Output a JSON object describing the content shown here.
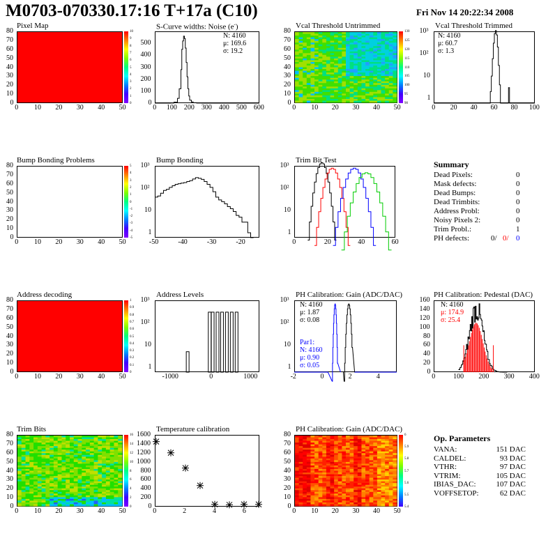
{
  "header": {
    "title": "M0703-070330.17:16 T+17a (C10)",
    "date": "Fri Nov 14 20:22:34 2008"
  },
  "panels": {
    "p11": {
      "title": "Pixel Map",
      "yt": [
        "0",
        "10",
        "20",
        "30",
        "40",
        "50",
        "60",
        "70",
        "80"
      ],
      "xt": [
        "0",
        "10",
        "20",
        "30",
        "40",
        "50"
      ],
      "cb": [
        "10",
        "9",
        "8",
        "7",
        "6",
        "5",
        "4",
        "3",
        "2",
        "1",
        "0"
      ]
    },
    "p12": {
      "title": "S-Curve widths: Noise (e<sup>-</sup>)",
      "title_text": "S-Curve widths: Noise (e )",
      "yt": [
        "0",
        "100",
        "200",
        "300",
        "400",
        "500"
      ],
      "xt": [
        "0",
        "100",
        "200",
        "300",
        "400",
        "500",
        "600"
      ],
      "stats": [
        "N: 4160",
        "μ: 169.6",
        "σ: 19.2"
      ]
    },
    "p13": {
      "title": "Vcal Threshold Untrimmed",
      "yt": [
        "0",
        "10",
        "20",
        "30",
        "40",
        "50",
        "60",
        "70",
        "80"
      ],
      "xt": [
        "0",
        "10",
        "20",
        "30",
        "40",
        "50"
      ],
      "cb": [
        "130",
        "125",
        "120",
        "115",
        "110",
        "105",
        "100",
        "95",
        "90"
      ]
    },
    "p14": {
      "title": "Vcal Threshold Trimmed",
      "yt": [
        "1",
        "10",
        "10²",
        "10³"
      ],
      "xt": [
        "0",
        "20",
        "40",
        "60",
        "80",
        "100"
      ],
      "stats": [
        "N: 4160",
        "μ: 60.7",
        "σ:  1.3"
      ]
    },
    "p21": {
      "title": "Bump Bonding Problems",
      "yt": [
        "0",
        "10",
        "20",
        "30",
        "40",
        "50",
        "60",
        "70",
        "80"
      ],
      "xt": [
        "0",
        "10",
        "20",
        "30",
        "40",
        "50"
      ],
      "cb": [
        "5",
        "4",
        "3",
        "2",
        "1",
        "0",
        "-1",
        "-2",
        "-3",
        "-4",
        "-5"
      ]
    },
    "p22": {
      "title": "Bump Bonding",
      "yt": [
        "1",
        "10",
        "10²",
        "10³"
      ],
      "xt": [
        "-50",
        "-40",
        "-30",
        "-20"
      ]
    },
    "p23": {
      "title": "Trim Bit Test",
      "yt": [
        "1",
        "10",
        "10²",
        "10³"
      ],
      "xt": [
        "0",
        "20",
        "40",
        "60"
      ]
    },
    "p31": {
      "title": "Address decoding",
      "yt": [
        "0",
        "10",
        "20",
        "30",
        "40",
        "50",
        "60",
        "70",
        "80"
      ],
      "xt": [
        "0",
        "10",
        "20",
        "30",
        "40",
        "50"
      ],
      "cb": [
        "1",
        "0.9",
        "0.8",
        "0.7",
        "0.6",
        "0.5",
        "0.4",
        "0.3",
        "0.2",
        "0.1",
        "0"
      ]
    },
    "p32": {
      "title": "Address Levels",
      "yt": [
        "1",
        "10",
        "10²",
        "10³"
      ],
      "xt": [
        "-1000",
        "0",
        "1000"
      ]
    },
    "p33": {
      "title": "PH Calibration: Gain (ADC/DAC)",
      "yt": [
        "1",
        "10",
        "10²",
        "10³"
      ],
      "xt": [
        "-2",
        "0",
        "2",
        "4"
      ],
      "stats": [
        "N: 4160",
        "μ: 1.87",
        "σ: 0.08"
      ],
      "stats2": [
        "Par1:",
        "N: 4160",
        "μ: 0.90",
        "σ: 0.05"
      ]
    },
    "p34": {
      "title": "PH Calibration: Pedestal (DAC)",
      "yt": [
        "0",
        "20",
        "40",
        "60",
        "80",
        "100",
        "120",
        "140",
        "160"
      ],
      "xt": [
        "0",
        "100",
        "200",
        "300",
        "400"
      ],
      "stats": [
        "N: 4160",
        "μ: 174.9",
        "σ: 25.4"
      ]
    },
    "p41": {
      "title": "Trim Bits",
      "yt": [
        "0",
        "10",
        "20",
        "30",
        "40",
        "50",
        "60",
        "70",
        "80"
      ],
      "xt": [
        "0",
        "10",
        "20",
        "30",
        "40",
        "50"
      ],
      "cb": [
        "16",
        "14",
        "12",
        "10",
        "8",
        "6",
        "4",
        "2",
        "0"
      ]
    },
    "p42": {
      "title": "Temperature calibration",
      "yt": [
        "0",
        "200",
        "400",
        "600",
        "800",
        "1000",
        "1200",
        "1400",
        "1600"
      ],
      "xt": [
        "0",
        "2",
        "4",
        "6"
      ]
    },
    "p43": {
      "title": "PH Calibration: Gain (ADC/DAC)",
      "yt": [
        "0",
        "10",
        "20",
        "30",
        "40",
        "50",
        "60",
        "70",
        "80"
      ],
      "xt": [
        "0",
        "10",
        "20",
        "30",
        "40",
        "50"
      ],
      "cb": [
        "6",
        "5.9",
        "5.8",
        "5.7",
        "5.6",
        "5.5",
        "5.4"
      ]
    }
  },
  "summary": {
    "title": "Summary",
    "rows": [
      {
        "label": "Dead Pixels:",
        "value": "0"
      },
      {
        "label": "Mask defects:",
        "value": "0"
      },
      {
        "label": "Dead Bumps:",
        "value": "0"
      },
      {
        "label": "Dead Trimbits:",
        "value": "0"
      },
      {
        "label": "Address Probl:",
        "value": "0"
      },
      {
        "label": "Noisy Pixels 2:",
        "value": "0"
      },
      {
        "label": "Trim Probl.:",
        "value": "1"
      }
    ],
    "ph": {
      "label": "PH defects:",
      "v1": "0/",
      "v2": "0/",
      "v3": "0"
    }
  },
  "params": {
    "title": "Op. Parameters",
    "rows": [
      {
        "label": "VANA:",
        "value": "151 DAC"
      },
      {
        "label": "CALDEL:",
        "value": "93 DAC"
      },
      {
        "label": "VTHR:",
        "value": "97 DAC"
      },
      {
        "label": "VTRIM:",
        "value": "105 DAC"
      },
      {
        "label": "IBIAS_DAC:",
        "value": "107 DAC"
      },
      {
        "label": "VOFFSETOP:",
        "value": "62 DAC"
      }
    ]
  },
  "chart_data": [
    {
      "type": "bar",
      "title": "S-Curve widths: Noise (e-)",
      "x": [
        100,
        120,
        140,
        150,
        160,
        170,
        180,
        190,
        200,
        220,
        250,
        300
      ],
      "values": [
        0,
        20,
        100,
        350,
        530,
        560,
        430,
        200,
        60,
        20,
        5,
        0
      ],
      "ylim": [
        0,
        600
      ],
      "xlim": [
        0,
        600
      ]
    },
    {
      "type": "bar",
      "title": "Vcal Threshold Trimmed",
      "x": [
        55,
        57,
        59,
        61,
        63,
        65,
        67,
        75
      ],
      "values": [
        2,
        40,
        500,
        1200,
        700,
        60,
        3,
        2
      ],
      "log_y": true
    },
    {
      "type": "scatter",
      "title": "Temperature calibration",
      "x": [
        0,
        1,
        2,
        3,
        4,
        5,
        6,
        7
      ],
      "y": [
        1450,
        1200,
        860,
        470,
        50,
        40,
        50,
        50
      ],
      "ylim": [
        0,
        1600
      ],
      "xlim": [
        0,
        7
      ]
    }
  ],
  "colors": {
    "red": "#ff0000",
    "blue": "#0000ff",
    "green": "#00cc00"
  }
}
